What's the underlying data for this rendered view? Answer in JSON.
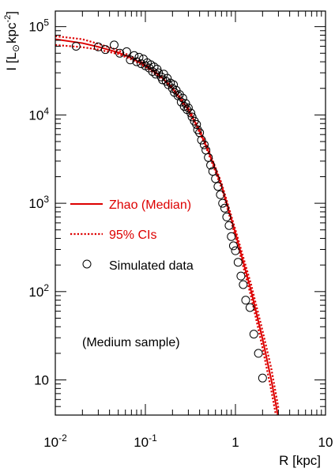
{
  "chart_data": {
    "type": "scatter",
    "xlabel": "R [kpc]",
    "ylabel": "I [L⊙ kpc⁻²]",
    "ylabel_parts": {
      "lead": "I [L",
      "sun": "⊙",
      "unit": "kpc",
      "exp": "-2",
      "close": "]"
    },
    "xscale": "log",
    "yscale": "log",
    "xlim": [
      0.01,
      10
    ],
    "ylim": [
      4,
      150000
    ],
    "x_ticks": [
      {
        "value": 0.01,
        "base": "10",
        "exp": "-2"
      },
      {
        "value": 0.1,
        "base": "10",
        "exp": "-1"
      },
      {
        "value": 1,
        "base": "1",
        "exp": ""
      },
      {
        "value": 10,
        "base": "10",
        "exp": ""
      }
    ],
    "y_ticks": [
      {
        "value": 10,
        "base": "10",
        "exp": ""
      },
      {
        "value": 100,
        "base": "10",
        "exp": "2"
      },
      {
        "value": 1000,
        "base": "10",
        "exp": "3"
      },
      {
        "value": 10000,
        "base": "10",
        "exp": "4"
      },
      {
        "value": 100000,
        "base": "10",
        "exp": "5"
      }
    ],
    "grid": false,
    "legend_position": "middle-left",
    "legend": [
      {
        "label": "Zhao (Median)",
        "style": "solid",
        "color": "#dd0000"
      },
      {
        "label": "95% CIs",
        "style": "dotted",
        "color": "#dd0000"
      },
      {
        "label": "Simulated data",
        "style": "open-circle",
        "color": "#000000"
      }
    ],
    "annotation": "(Medium sample)",
    "colors": {
      "model": "#dd0000",
      "data": "#000000",
      "axes": "#000000"
    },
    "series": [
      {
        "name": "Zhao (Median)",
        "kind": "line",
        "style": "solid",
        "x": [
          0.01,
          0.02,
          0.03,
          0.05,
          0.07,
          0.1,
          0.15,
          0.2,
          0.3,
          0.4,
          0.5,
          0.7,
          1.0,
          1.5,
          2.0,
          2.5,
          3.0
        ],
        "y": [
          72000,
          65000,
          59000,
          51000,
          44000,
          36000,
          27000,
          20000,
          11500,
          6600,
          3900,
          1600,
          460,
          100,
          29,
          10,
          3.7
        ]
      },
      {
        "name": "95% CIs (upper)",
        "kind": "line",
        "style": "dotted",
        "x": [
          0.01,
          0.02,
          0.03,
          0.05,
          0.07,
          0.1,
          0.15,
          0.2,
          0.3,
          0.4,
          0.5,
          0.7,
          1.0,
          1.5,
          2.0,
          2.5,
          3.0
        ],
        "y": [
          78000,
          72000,
          64000,
          54000,
          46000,
          37500,
          28000,
          20500,
          12000,
          6900,
          4100,
          1700,
          500,
          118,
          36,
          13.5,
          4.8
        ]
      },
      {
        "name": "95% CIs (lower)",
        "kind": "line",
        "style": "dotted",
        "x": [
          0.01,
          0.02,
          0.03,
          0.05,
          0.07,
          0.1,
          0.15,
          0.2,
          0.3,
          0.4,
          0.5,
          0.7,
          1.0,
          1.5,
          2.0,
          2.5,
          3.0
        ],
        "y": [
          62000,
          58500,
          55000,
          49000,
          42500,
          35000,
          26000,
          19500,
          11000,
          6300,
          3700,
          1500,
          420,
          86,
          23,
          7.6,
          2.8
        ]
      },
      {
        "name": "Simulated data",
        "kind": "points",
        "x": [
          0.017,
          0.03,
          0.036,
          0.045,
          0.052,
          0.062,
          0.068,
          0.075,
          0.08,
          0.085,
          0.09,
          0.095,
          0.1,
          0.105,
          0.11,
          0.115,
          0.12,
          0.125,
          0.13,
          0.135,
          0.14,
          0.15,
          0.155,
          0.16,
          0.17,
          0.175,
          0.18,
          0.19,
          0.2,
          0.205,
          0.21,
          0.22,
          0.23,
          0.24,
          0.25,
          0.26,
          0.27,
          0.28,
          0.29,
          0.3,
          0.32,
          0.33,
          0.35,
          0.37,
          0.38,
          0.4,
          0.42,
          0.45,
          0.47,
          0.5,
          0.53,
          0.56,
          0.6,
          0.64,
          0.68,
          0.72,
          0.76,
          0.8,
          0.85,
          0.9,
          0.95,
          1.0,
          1.07,
          1.15,
          1.22,
          1.3,
          1.45,
          1.6,
          1.8,
          2.0
        ],
        "y": [
          60000,
          59000,
          55000,
          62000,
          50000,
          52000,
          42000,
          47000,
          40000,
          45000,
          38000,
          43000,
          36000,
          39000,
          34000,
          37000,
          31000,
          35000,
          29000,
          33000,
          30000,
          27000,
          25000,
          29000,
          24000,
          26000,
          22000,
          23000,
          20000,
          22000,
          18000,
          19000,
          16500,
          17000,
          14000,
          15500,
          12500,
          13500,
          11500,
          12000,
          10500,
          9500,
          8500,
          7800,
          6800,
          6300,
          5200,
          4600,
          4000,
          3300,
          2700,
          2300,
          1900,
          1550,
          1250,
          1000,
          880,
          700,
          560,
          420,
          330,
          290,
          215,
          150,
          120,
          80,
          66,
          33,
          20,
          10.5
        ]
      }
    ]
  }
}
